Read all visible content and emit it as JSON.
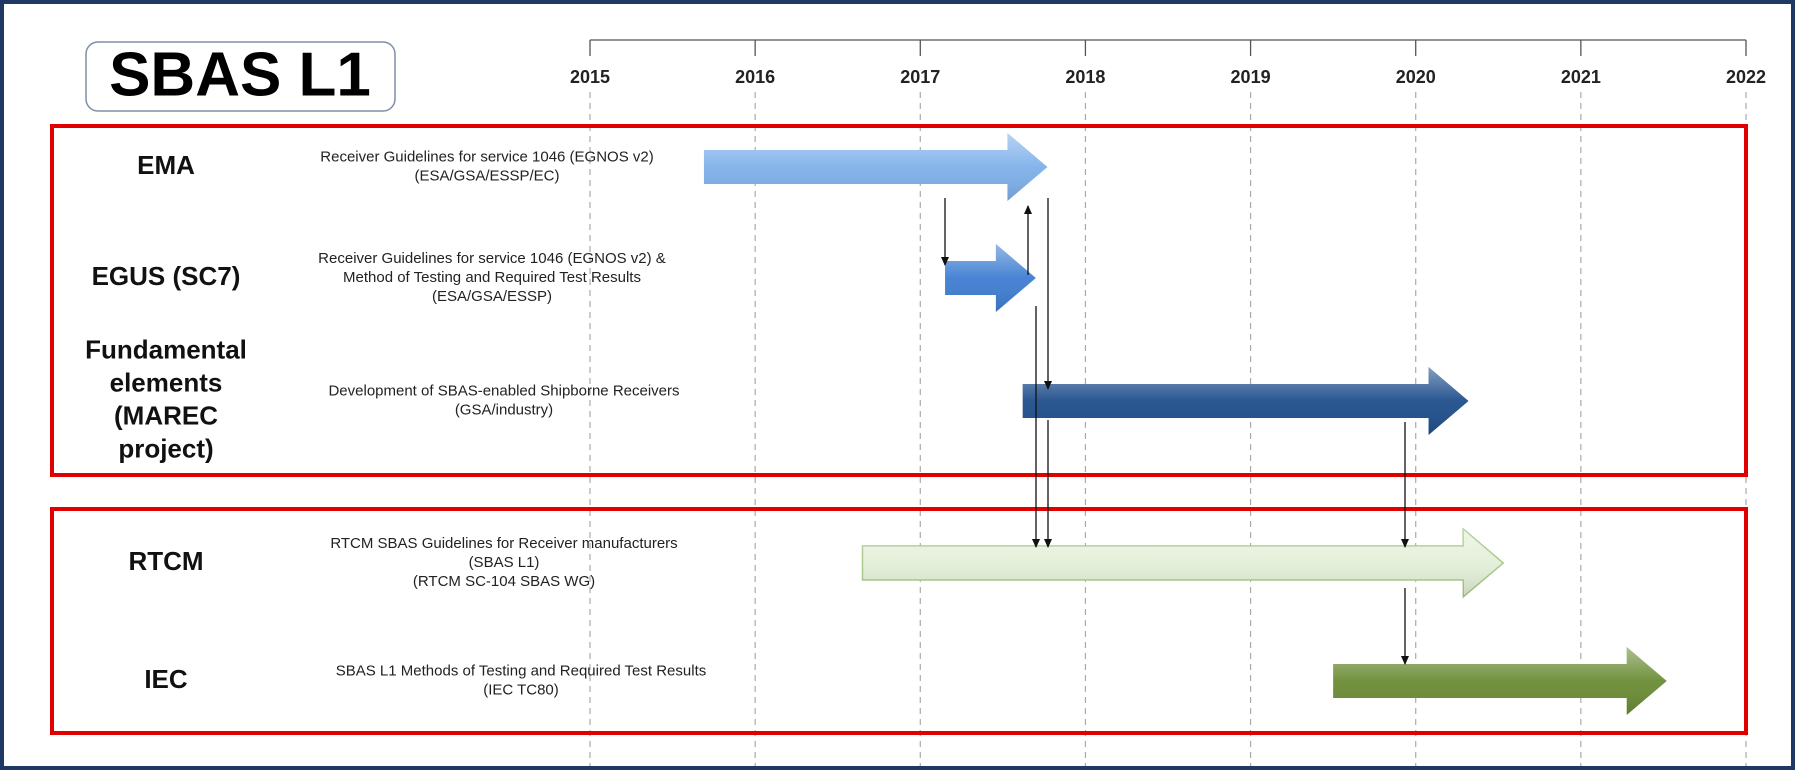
{
  "title": "SBAS L1",
  "axis": {
    "ticks": [
      2015,
      2016,
      2017,
      2018,
      2019,
      2020,
      2021,
      2022
    ],
    "range": [
      2015,
      2022
    ]
  },
  "rows": [
    {
      "label": [
        "EMA"
      ],
      "text": [
        "Receiver Guidelines for service 1046 (EGNOS v2)",
        "(ESA/GSA/ESSP/EC)"
      ],
      "start": 2015.69,
      "end": 2017.77,
      "color": "#7fb0ea"
    },
    {
      "label": [
        "EGUS (SC7)"
      ],
      "text": [
        "Receiver Guidelines for service 1046 (EGNOS v2) &",
        "Method of Testing and Required Test Results",
        "(ESA/GSA/ESSP)"
      ],
      "start": 2017.15,
      "end": 2017.7,
      "color": "#3f7ed2"
    },
    {
      "label": [
        "Fundamental",
        "elements",
        "(MAREC",
        "project)"
      ],
      "text": [
        "Development of SBAS-enabled Shipborne Receivers",
        "(GSA/industry)"
      ],
      "start": 2017.62,
      "end": 2020.32,
      "color": "#1f4e8c"
    },
    {
      "label": [
        "RTCM"
      ],
      "text": [
        "RTCM SBAS Guidelines for Receiver manufacturers",
        "(SBAS L1)",
        "(RTCM SC-104 SBAS WG)"
      ],
      "start": 2016.65,
      "end": 2020.53,
      "color": "#e3efd7"
    },
    {
      "label": [
        "IEC"
      ],
      "text": [
        "SBAS L1 Methods of Testing and Required Test Results",
        "(IEC TC80)"
      ],
      "start": 2019.5,
      "end": 2021.52,
      "color": "#6b8c35"
    }
  ]
}
